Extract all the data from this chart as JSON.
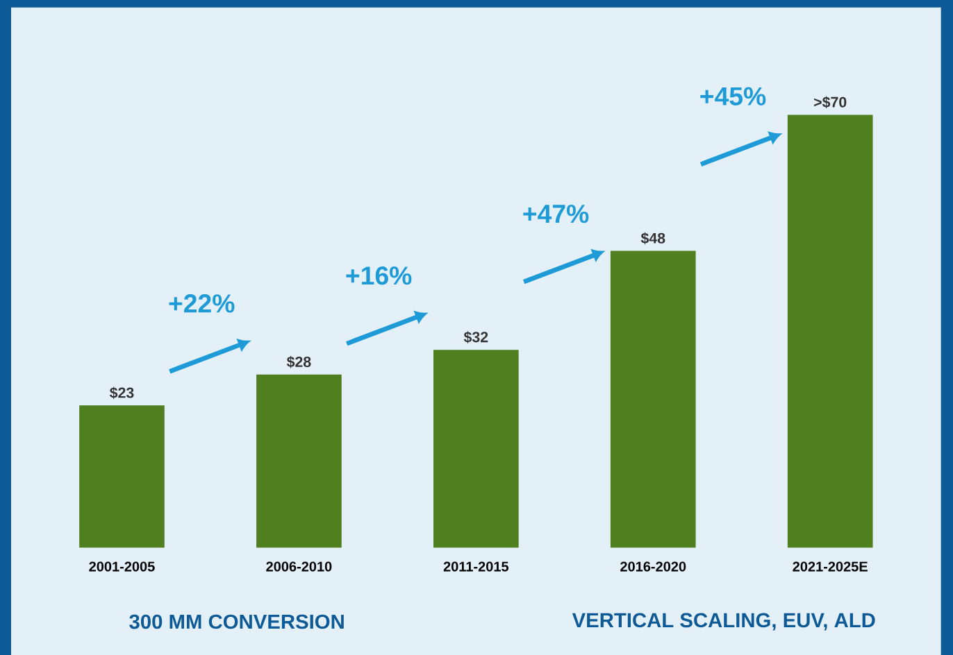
{
  "chart_data": {
    "type": "bar",
    "categories": [
      "2001-2005",
      "2006-2010",
      "2011-2015",
      "2016-2020",
      "2021-2025E"
    ],
    "values": [
      23,
      28,
      32,
      48,
      70
    ],
    "value_labels": [
      "$23",
      "$28",
      "$32",
      "$48",
      ">$70"
    ],
    "color": "#4f7f1f",
    "annotations": [
      "+22%",
      "+16%",
      "+47%",
      "+45%",
      "300 MM CONVERSION",
      "VERTICAL SCALING, EUV, ALD"
    ]
  }
}
